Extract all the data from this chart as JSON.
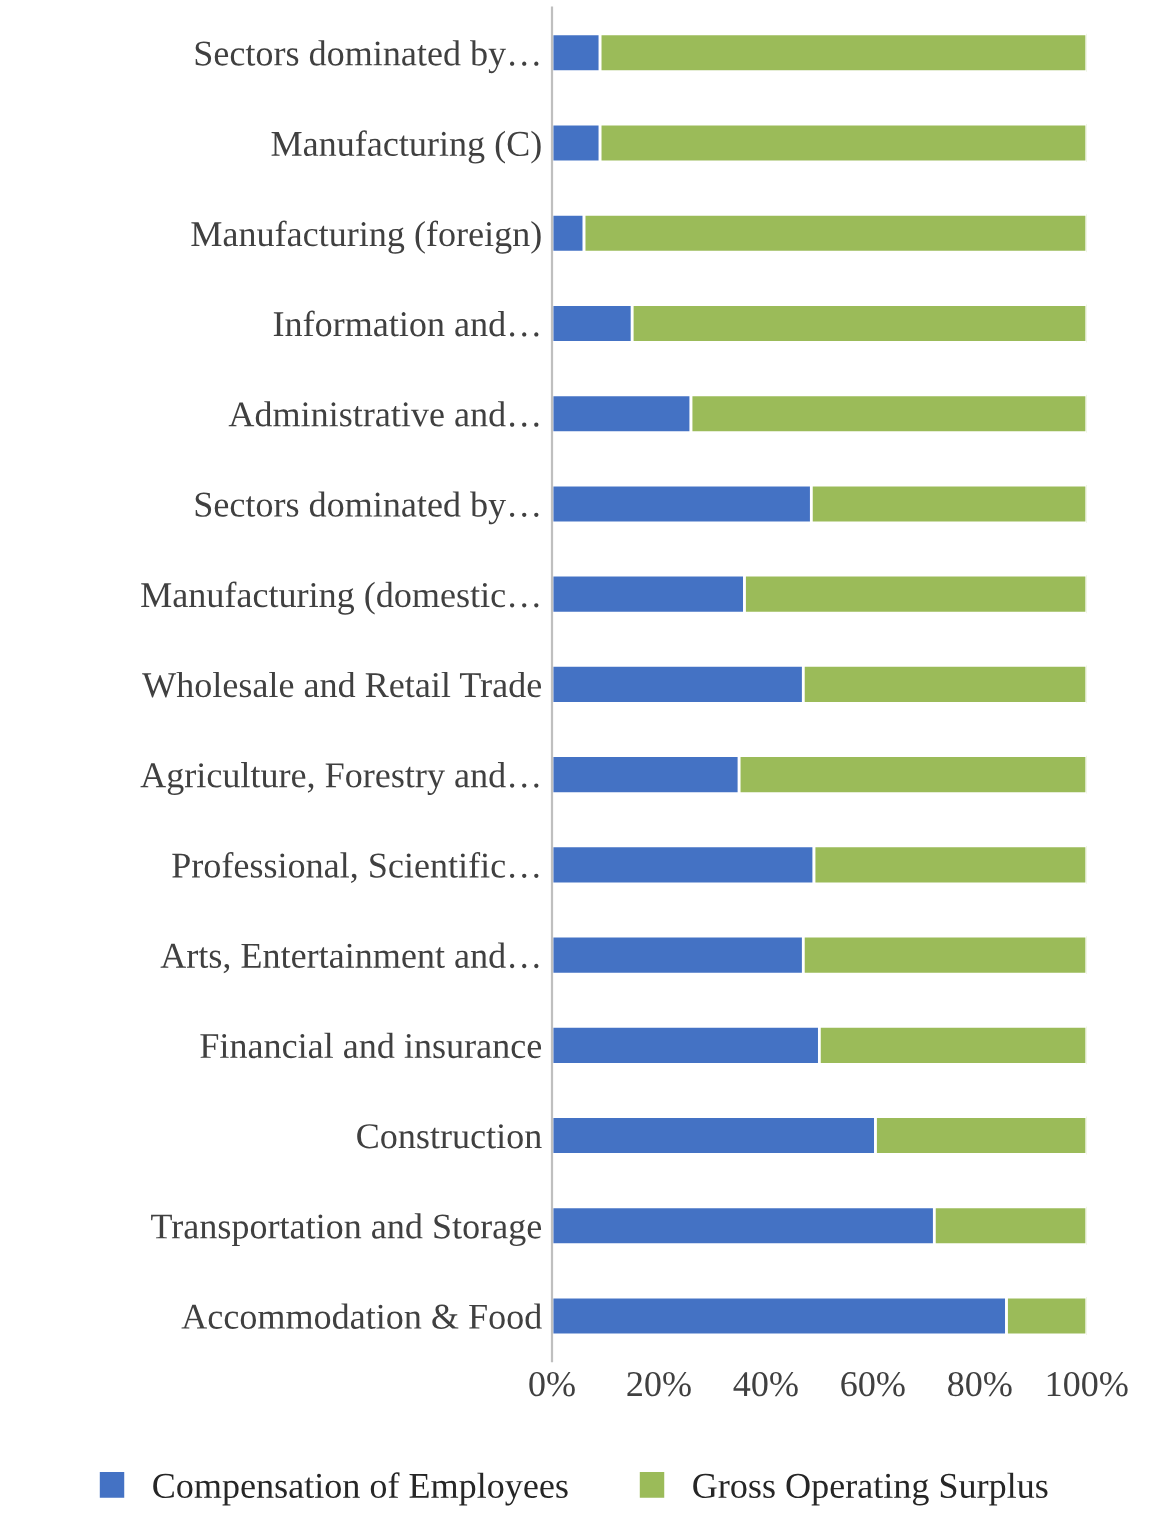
{
  "chart_data": {
    "type": "bar",
    "orientation": "horizontal",
    "stacked": true,
    "categories": [
      "Sectors dominated by…",
      "Manufacturing (C)",
      "Manufacturing (foreign)",
      "Information and…",
      "Administrative and…",
      "Sectors dominated by…",
      "Manufacturing (domestic…",
      "Wholesale and Retail Trade",
      "Agriculture, Forestry and…",
      "Professional, Scientific…",
      "Arts, Entertainment and…",
      "Financial and insurance",
      "Construction",
      "Transportation and Storage",
      "Accommodation & Food"
    ],
    "series": [
      {
        "name": "Compensation of Employees",
        "color": "#4472c4",
        "values": [
          9,
          9,
          6,
          15,
          26,
          48.5,
          36,
          47,
          35,
          49,
          47,
          50,
          60.5,
          71.5,
          85
        ]
      },
      {
        "name": "Gross Operating Surplus",
        "color": "#9bbb59",
        "values": [
          91,
          91,
          94,
          85,
          74,
          51.5,
          64,
          53,
          65,
          51,
          53,
          50,
          39.5,
          28.5,
          15
        ]
      }
    ],
    "xlim": [
      0,
      100
    ],
    "xticks": [
      {
        "value": 0,
        "label": "0%"
      },
      {
        "value": 20,
        "label": "20%"
      },
      {
        "value": 40,
        "label": "40%"
      },
      {
        "value": 60,
        "label": "60%"
      },
      {
        "value": 80,
        "label": "80%"
      },
      {
        "value": 100,
        "label": "100%"
      }
    ],
    "grid": false,
    "legend": "bottom"
  }
}
